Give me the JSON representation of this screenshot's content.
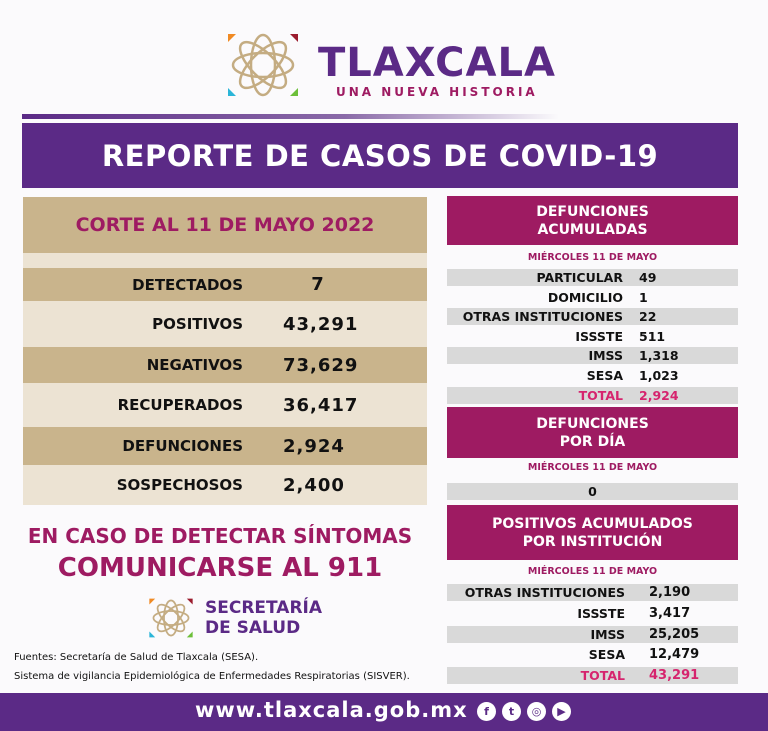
{
  "header": {
    "brand": "TLAXCALA",
    "tagline": "UNA NUEVA HISTORIA"
  },
  "title": "REPORTE DE CASOS DE COVID-19",
  "summary": {
    "heading": "CORTE AL 11 DE MAYO 2022",
    "rows": [
      {
        "label": "DETECTADOS",
        "value": "7"
      },
      {
        "label": "POSITIVOS",
        "value": "43,291"
      },
      {
        "label": "NEGATIVOS",
        "value": "73,629"
      },
      {
        "label": "RECUPERADOS",
        "value": "36,417"
      },
      {
        "label": "DEFUNCIONES",
        "value": "2,924"
      },
      {
        "label": "SOSPECHOSOS",
        "value": "2,400"
      }
    ]
  },
  "deaths_cumulative": {
    "title1": "DEFUNCIONES",
    "title2": "ACUMULADAS",
    "date": "MIÉRCOLES 11 DE MAYO",
    "rows": [
      {
        "label": "PARTICULAR",
        "value": "49"
      },
      {
        "label": "DOMICILIO",
        "value": "1"
      },
      {
        "label": "OTRAS INSTITUCIONES",
        "value": "22"
      },
      {
        "label": "ISSSTE",
        "value": "511"
      },
      {
        "label": "IMSS",
        "value": "1,318"
      },
      {
        "label": "SESA",
        "value": "1,023"
      },
      {
        "label": "TOTAL",
        "value": "2,924"
      }
    ]
  },
  "deaths_daily": {
    "title1": "DEFUNCIONES",
    "title2": "POR DÍA",
    "date": "MIÉRCOLES 11 DE MAYO",
    "value": "0"
  },
  "positives": {
    "title1": "POSITIVOS ACUMULADOS",
    "title2": "POR INSTITUCIÓN",
    "date": "MIÉRCOLES 11 DE MAYO",
    "rows": [
      {
        "label": "OTRAS INSTITUCIONES",
        "value": "2,190"
      },
      {
        "label": "ISSSTE",
        "value": "3,417"
      },
      {
        "label": "IMSS",
        "value": "25,205"
      },
      {
        "label": "SESA",
        "value": "12,479"
      },
      {
        "label": "TOTAL",
        "value": "43,291"
      }
    ]
  },
  "call": {
    "line1": "EN CASO DE DETECTAR SÍNTOMAS",
    "line2": "COMUNICARSE AL 911"
  },
  "secretaria": {
    "line1": "SECRETARÍA",
    "line2": "DE SALUD"
  },
  "sources": [
    "Fuentes:  Secretaría de Salud de Tlaxcala (SESA).",
    "Sistema de vigilancia Epidemiológica de Enfermedades Respiratorias (SISVER)."
  ],
  "footer": {
    "url": "www.tlaxcala.gob.mx",
    "social": [
      "facebook-icon",
      "twitter-icon",
      "instagram-icon",
      "youtube-icon"
    ]
  },
  "colors": {
    "purple": "#5b2a86",
    "magenta": "#9e1b62",
    "tan": "#c9b48c",
    "tan_light": "#ece3d3",
    "gray": "#d9d9d9",
    "total": "#d6246e"
  }
}
